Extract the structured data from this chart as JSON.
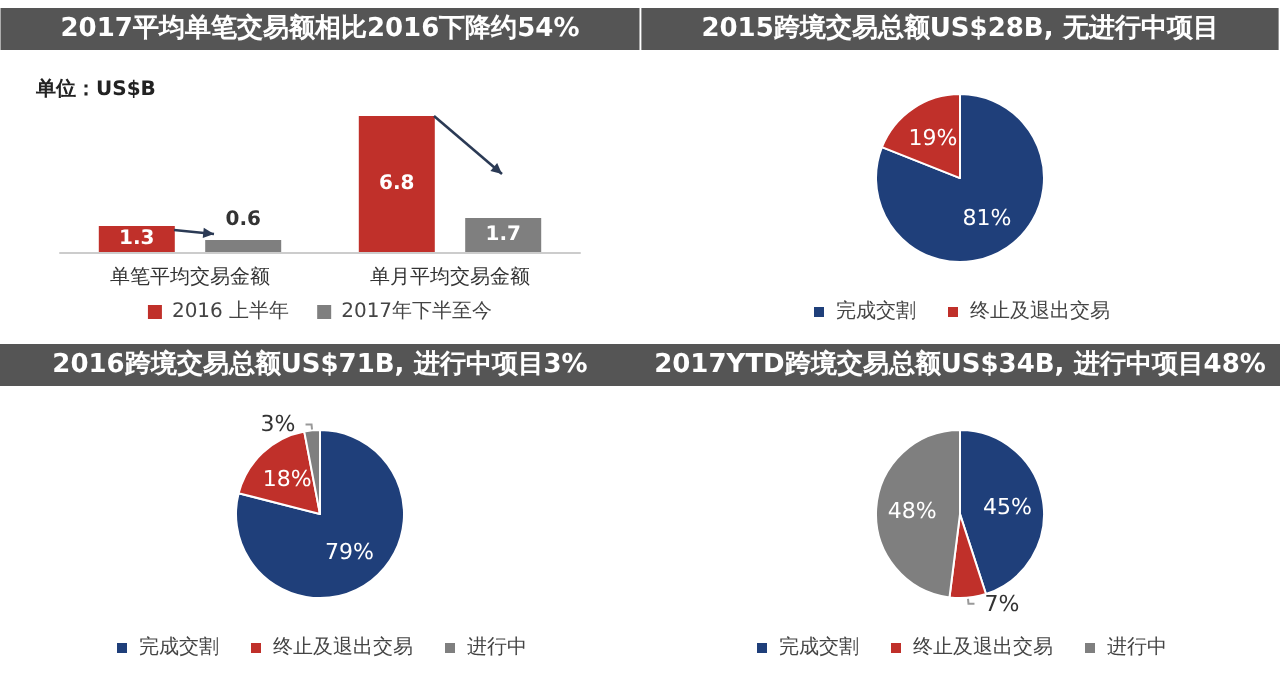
{
  "chart_data": [
    {
      "type": "bar",
      "title": "2017平均单笔交易额相比2016下降约54%",
      "annotations": [
        "单位：US$B"
      ],
      "categories": [
        "单笔平均交易金额",
        "单月平均交易金额"
      ],
      "series": [
        {
          "name": "2016 上半年",
          "color": "#c0302a",
          "values": [
            1.3,
            6.8
          ]
        },
        {
          "name": "2017年下半至今",
          "color": "#7f7f7f",
          "values": [
            0.6,
            1.7
          ]
        }
      ],
      "data_labels": true,
      "legend": "bottom"
    },
    {
      "type": "pie",
      "title": "2015跨境交易总额US$28B, 无进行中项目",
      "categories": [
        "完成交割",
        "终止及退出交易"
      ],
      "values": [
        81,
        19
      ],
      "colors": [
        "#1f3f7a",
        "#c0302a"
      ],
      "value_labels": [
        "81%",
        "19%"
      ],
      "legend": "bottom"
    },
    {
      "type": "pie",
      "title": "2016跨境交易总额US$71B, 进行中项目3%",
      "categories": [
        "完成交割",
        "终止及退出交易",
        "进行中"
      ],
      "values": [
        79,
        18,
        3
      ],
      "colors": [
        "#1f3f7a",
        "#c0302a",
        "#7f7f7f"
      ],
      "value_labels": [
        "79%",
        "18%",
        "3%"
      ],
      "legend": "bottom"
    },
    {
      "type": "pie",
      "title": "2017YTD跨境交易总额US$34B, 进行中项目48%",
      "categories": [
        "完成交割",
        "终止及退出交易",
        "进行中"
      ],
      "values": [
        45,
        7,
        48
      ],
      "colors": [
        "#1f3f7a",
        "#c0302a",
        "#7f7f7f"
      ],
      "value_labels": [
        "45%",
        "7%",
        "48%"
      ],
      "legend": "bottom"
    }
  ]
}
